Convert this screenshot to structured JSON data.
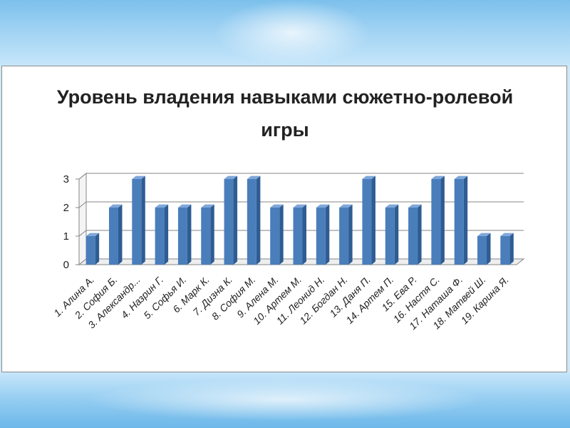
{
  "chart_data": {
    "type": "bar",
    "title_lines": [
      "Уровень владения навыками сюжетно-ролевой",
      "игры"
    ],
    "categories": [
      "1.  Алина А.",
      "2.  София Б.",
      "3.  Александр...",
      "4.  Назрин Г.",
      "5.  Софья И.",
      "6.  Марк К.",
      "7.  Дизна К.",
      "8.  София М.",
      "9.  Алена М.",
      "10.  Артем М.",
      "11.  Леонид Н.",
      "12.  Богдан Н.",
      "13.  Даня П.",
      "14.  Артем П.",
      "15.  Ева Р.",
      "16.  Настя С.",
      "17.  Наташа Ф.",
      "18.  Матвей Ш.",
      "19.  Карина Я."
    ],
    "values": [
      1,
      2,
      3,
      2,
      2,
      2,
      3,
      3,
      2,
      2,
      2,
      2,
      3,
      2,
      2,
      3,
      3,
      1,
      1
    ],
    "y_ticks": [
      "0",
      "1",
      "2",
      "3"
    ],
    "ylim": [
      0,
      3
    ],
    "grid": true,
    "legend": "none",
    "colors": {
      "bar_front": "#4a7ebb",
      "bar_side": "#2e5c93",
      "bar_top": "#7fa7d9",
      "grid": "#868686",
      "wall": "#ffffff"
    }
  }
}
